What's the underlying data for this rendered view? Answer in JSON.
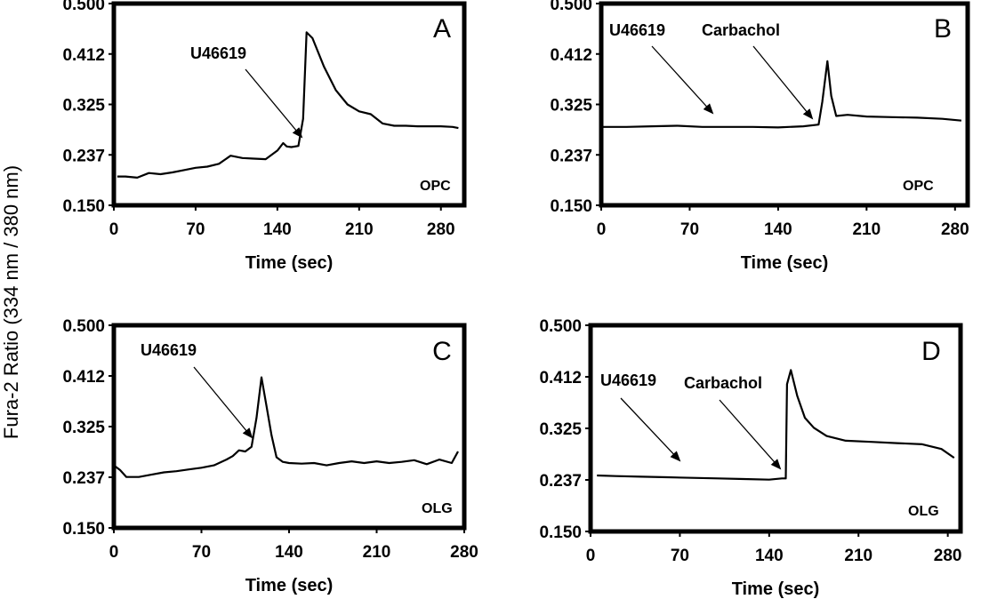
{
  "y_axis_label": "Fura-2 Ratio (334 nm / 380 nm)",
  "chart_data": [
    {
      "type": "line",
      "panel_label": "A",
      "cell_type": "OPC",
      "xlabel": "Time (sec)",
      "x_ticks": [
        "0",
        "70",
        "140",
        "210",
        "280"
      ],
      "y_ticks": [
        "0.150",
        "0.237",
        "0.325",
        "0.412",
        "0.500"
      ],
      "xlim": [
        0,
        300
      ],
      "ylim": [
        0.15,
        0.5
      ],
      "annotations": [
        {
          "text": "U46619",
          "x": 150,
          "y": 0.269
        }
      ],
      "series": [
        {
          "x": [
            3,
            10,
            20,
            30,
            40,
            50,
            60,
            70,
            80,
            90,
            100,
            110,
            120,
            130,
            140,
            145,
            148,
            152,
            158,
            162,
            165,
            170,
            180,
            190,
            200,
            210,
            220,
            230,
            240,
            250,
            260,
            270,
            280,
            290,
            295
          ],
          "y": [
            0.2,
            0.2,
            0.198,
            0.206,
            0.204,
            0.207,
            0.211,
            0.215,
            0.217,
            0.222,
            0.236,
            0.232,
            0.231,
            0.23,
            0.245,
            0.258,
            0.252,
            0.251,
            0.253,
            0.3,
            0.45,
            0.44,
            0.39,
            0.35,
            0.325,
            0.313,
            0.308,
            0.292,
            0.288,
            0.288,
            0.287,
            0.287,
            0.287,
            0.286,
            0.284
          ]
        }
      ]
    },
    {
      "type": "line",
      "panel_label": "B",
      "cell_type": "OPC",
      "xlabel": "Time (sec)",
      "x_ticks": [
        "0",
        "70",
        "140",
        "210",
        "280"
      ],
      "y_ticks": [
        "0.150",
        "0.237",
        "0.325",
        "0.412",
        "0.500"
      ],
      "xlim": [
        0,
        290
      ],
      "ylim": [
        0.15,
        0.5
      ],
      "annotations": [
        {
          "text": "U46619",
          "x": 92,
          "y": 0.304
        },
        {
          "text": "Carbachol",
          "x": 173,
          "y": 0.296
        }
      ],
      "series": [
        {
          "x": [
            0,
            20,
            40,
            60,
            80,
            100,
            120,
            140,
            160,
            172,
            175,
            179,
            182,
            186,
            195,
            210,
            230,
            250,
            270,
            285
          ],
          "y": [
            0.286,
            0.286,
            0.287,
            0.288,
            0.286,
            0.286,
            0.286,
            0.285,
            0.287,
            0.29,
            0.33,
            0.4,
            0.34,
            0.305,
            0.307,
            0.304,
            0.303,
            0.302,
            0.3,
            0.297
          ]
        }
      ]
    },
    {
      "type": "line",
      "panel_label": "C",
      "cell_type": "OLG",
      "xlabel": "Time (sec)",
      "x_ticks": [
        "0",
        "70",
        "140",
        "210",
        "280"
      ],
      "y_ticks": [
        "0.150",
        "0.237",
        "0.325",
        "0.412",
        "0.500"
      ],
      "xlim": [
        0,
        280
      ],
      "ylim": [
        0.15,
        0.5
      ],
      "annotations": [
        {
          "text": "U46619",
          "x": 112,
          "y": 0.287
        }
      ],
      "series": [
        {
          "x": [
            0,
            5,
            10,
            20,
            30,
            40,
            50,
            60,
            70,
            80,
            90,
            95,
            100,
            105,
            110,
            114,
            118,
            122,
            126,
            130,
            135,
            140,
            150,
            160,
            170,
            180,
            190,
            200,
            210,
            220,
            230,
            240,
            250,
            260,
            270,
            275
          ],
          "y": [
            0.258,
            0.25,
            0.238,
            0.238,
            0.242,
            0.246,
            0.248,
            0.251,
            0.254,
            0.258,
            0.268,
            0.274,
            0.284,
            0.282,
            0.29,
            0.34,
            0.41,
            0.36,
            0.31,
            0.272,
            0.264,
            0.262,
            0.261,
            0.262,
            0.258,
            0.262,
            0.265,
            0.262,
            0.265,
            0.262,
            0.264,
            0.267,
            0.26,
            0.268,
            0.262,
            0.282
          ]
        }
      ]
    },
    {
      "type": "line",
      "panel_label": "D",
      "cell_type": "OLG",
      "xlabel": "Time (sec)",
      "x_ticks": [
        "0",
        "70",
        "140",
        "210",
        "280"
      ],
      "y_ticks": [
        "0.150",
        "0.237",
        "0.325",
        "0.412",
        "0.500"
      ],
      "xlim": [
        0,
        290
      ],
      "ylim": [
        0.15,
        0.5
      ],
      "annotations": [
        {
          "text": "U46619",
          "x": 73,
          "y": 0.262
        },
        {
          "text": "Carbachol",
          "x": 150,
          "y": 0.255
        }
      ],
      "series": [
        {
          "x": [
            5,
            20,
            40,
            60,
            80,
            100,
            120,
            140,
            150,
            153,
            154,
            157,
            162,
            168,
            175,
            185,
            200,
            220,
            240,
            260,
            275,
            285
          ],
          "y": [
            0.245,
            0.244,
            0.243,
            0.242,
            0.241,
            0.24,
            0.239,
            0.238,
            0.24,
            0.24,
            0.4,
            0.424,
            0.38,
            0.343,
            0.326,
            0.312,
            0.304,
            0.302,
            0.3,
            0.298,
            0.29,
            0.275
          ]
        }
      ]
    }
  ]
}
